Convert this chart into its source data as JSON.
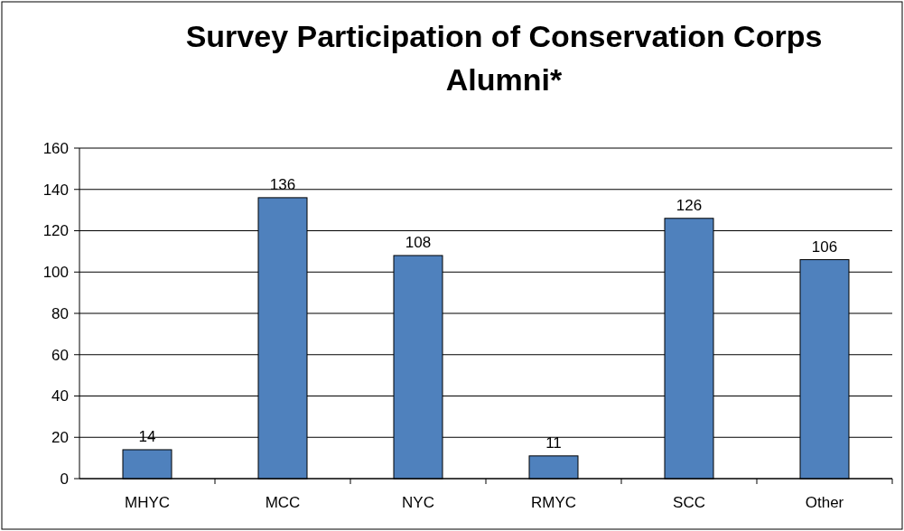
{
  "chart_data": {
    "type": "bar",
    "title": "Survey Participation of Conservation Corps Alumni*",
    "categories": [
      "MHYC",
      "MCC",
      "NYC",
      "RMYC",
      "SCC",
      "Other"
    ],
    "values": [
      14,
      136,
      108,
      11,
      126,
      106
    ],
    "color": "#4f81bd",
    "ylim": [
      0,
      160
    ],
    "yticks": [
      0,
      20,
      40,
      60,
      80,
      100,
      120,
      140,
      160
    ],
    "grid": "y",
    "data_labels": true
  }
}
